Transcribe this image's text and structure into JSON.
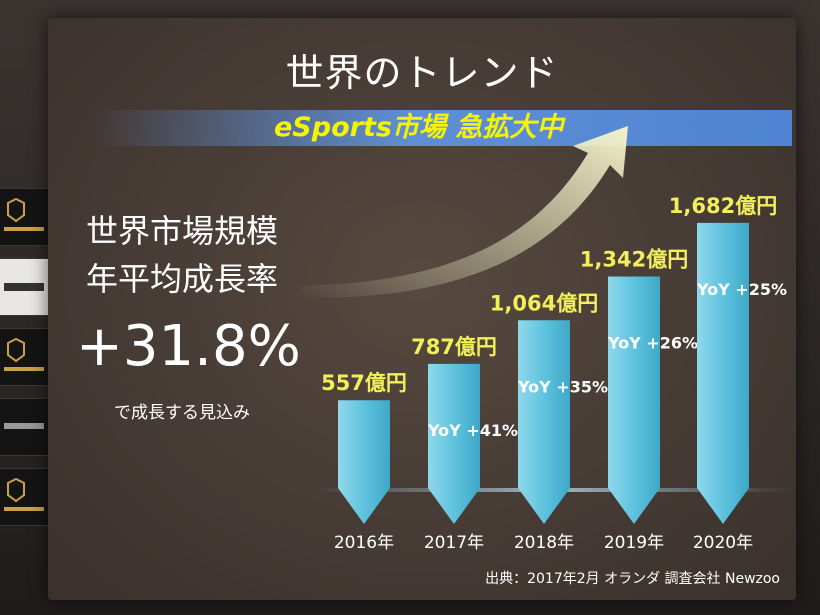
{
  "slide": {
    "title": "世界のトレンド",
    "banner": "eSports市場 急拡大中",
    "left_label_1": "世界市場規模",
    "left_label_2": "年平均成長率",
    "growth_rate": "+31.8%",
    "growth_note": "で成長する見込み",
    "source": "出典：2017年2月 オランダ 調査会社 Newzoo"
  },
  "colors": {
    "bar": "#5fc3de",
    "value_label": "#f2ef5a",
    "yoy_label": "#ffffff",
    "axis_label": "#ffffff",
    "banner_text": "#f5f500",
    "banner_bg": "#4f84d2",
    "arrow": "#f4f1c8"
  },
  "chart_data": {
    "type": "bar",
    "categories": [
      "2016年",
      "2017年",
      "2018年",
      "2019年",
      "2020年"
    ],
    "values": [
      557,
      787,
      1064,
      1342,
      1682
    ],
    "value_labels": [
      "557億円",
      "787億円",
      "1,064億円",
      "1,342億円",
      "1,682億円"
    ],
    "yoy_labels": [
      "",
      "YoY +41%",
      "YoY +35%",
      "YoY +26%",
      "YoY +25%"
    ],
    "title": "",
    "xlabel": "",
    "ylabel": "",
    "ylim": [
      0,
      1700
    ],
    "grid": false,
    "legend": "none"
  },
  "backdrop": {
    "icons": [
      "galleria-logo-icon",
      "zowie-logo-icon",
      "galleria-logo-icon",
      "counter-strike-logo-icon",
      "galleria-logo-icon"
    ]
  }
}
